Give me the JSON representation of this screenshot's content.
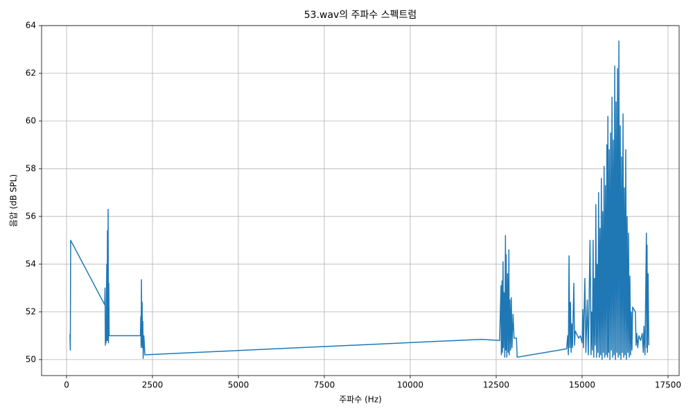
{
  "chart_data": {
    "type": "line",
    "title": "53.wav의 주파수 스펙트럼",
    "x_label": "주파수 (Hz)",
    "y_label": "음압 (dB SPL)",
    "color": "#1f77b4",
    "grid": true,
    "xlim": [
      -726,
      17823
    ],
    "xticks": [
      0,
      2500,
      5000,
      7500,
      10000,
      12500,
      15000,
      17500
    ],
    "ylim": [
      49.33,
      64
    ],
    "yticks": [
      50,
      52,
      54,
      56,
      58,
      60,
      62,
      64
    ],
    "x": [
      100,
      110,
      120,
      1110,
      1120,
      1130,
      1140,
      1150,
      1170,
      1180,
      1190,
      1200,
      1210,
      1220,
      1230,
      1240,
      2150,
      2160,
      2170,
      2180,
      2190,
      2200,
      2210,
      2220,
      2230,
      2250,
      2280,
      12080,
      12600,
      12640,
      12650,
      12670,
      12680,
      12700,
      12710,
      12730,
      12750,
      12770,
      12780,
      12790,
      12810,
      12830,
      12850,
      12870,
      12880,
      12900,
      12920,
      12940,
      12960,
      12990,
      13020,
      13090,
      13110,
      14550,
      14580,
      14600,
      14620,
      14640,
      14660,
      14680,
      14700,
      14720,
      14760,
      14780,
      14800,
      14900,
      14950,
      15000,
      15020,
      15040,
      15080,
      15110,
      15150,
      15180,
      15230,
      15260,
      15280,
      15300,
      15320,
      15340,
      15360,
      15380,
      15400,
      15420,
      15440,
      15460,
      15480,
      15500,
      15520,
      15540,
      15560,
      15580,
      15600,
      15620,
      15640,
      15660,
      15680,
      15700,
      15720,
      15740,
      15750,
      15770,
      15790,
      15810,
      15830,
      15850,
      15870,
      15890,
      15910,
      15930,
      15950,
      15970,
      15990,
      16010,
      16030,
      16050,
      16070,
      16090,
      16110,
      16130,
      16150,
      16170,
      16190,
      16210,
      16230,
      16250,
      16270,
      16290,
      16310,
      16330,
      16350,
      16370,
      16390,
      16410,
      16430,
      16450,
      16470,
      16550,
      16570,
      16590,
      16620,
      16650,
      16700,
      16750,
      16780,
      16800,
      16830,
      16870,
      16880,
      16890,
      16900,
      16920,
      16940
    ],
    "values": [
      51.05,
      50.4,
      55.0,
      52.3,
      53.0,
      50.6,
      51.5,
      50.7,
      54.0,
      50.8,
      55.4,
      50.8,
      56.3,
      50.7,
      53.2,
      51.0,
      51.0,
      51.8,
      50.5,
      53.35,
      50.6,
      52.4,
      50.5,
      51.6,
      50.05,
      51.0,
      50.2,
      50.85,
      50.8,
      53.1,
      50.2,
      53.3,
      50.3,
      54.1,
      50.5,
      52.8,
      50.1,
      55.2,
      50.4,
      54.4,
      50.1,
      53.6,
      50.3,
      54.6,
      50.2,
      52.5,
      50.4,
      52.6,
      50.5,
      51.9,
      50.9,
      50.9,
      50.1,
      50.45,
      51.0,
      50.2,
      54.35,
      50.5,
      52.4,
      50.3,
      51.5,
      50.5,
      53.2,
      50.6,
      51.2,
      50.9,
      51.0,
      50.7,
      52.1,
      50.5,
      53.4,
      50.3,
      52.5,
      50.2,
      55.0,
      50.2,
      52.0,
      50.4,
      55.0,
      50.1,
      53.4,
      50.6,
      56.5,
      50.1,
      54.0,
      50.3,
      57.0,
      50.1,
      55.5,
      50.2,
      57.6,
      50.0,
      56.2,
      50.3,
      58.1,
      50.1,
      57.3,
      50.2,
      59.0,
      50.1,
      60.2,
      50.3,
      58.8,
      50.0,
      59.5,
      50.4,
      61.0,
      50.1,
      59.2,
      50.2,
      62.3,
      50.0,
      60.8,
      50.3,
      62.2,
      50.1,
      63.35,
      50.2,
      59.8,
      50.0,
      58.5,
      50.3,
      60.3,
      50.1,
      57.2,
      50.2,
      58.8,
      50.0,
      56.0,
      50.3,
      55.3,
      50.1,
      53.5,
      50.2,
      52.0,
      50.4,
      52.2,
      52.0,
      50.6,
      51.1,
      50.5,
      51.0,
      50.8,
      51.1,
      50.3,
      51.4,
      50.2,
      55.3,
      50.5,
      54.8,
      50.3,
      53.6,
      50.6
    ]
  }
}
